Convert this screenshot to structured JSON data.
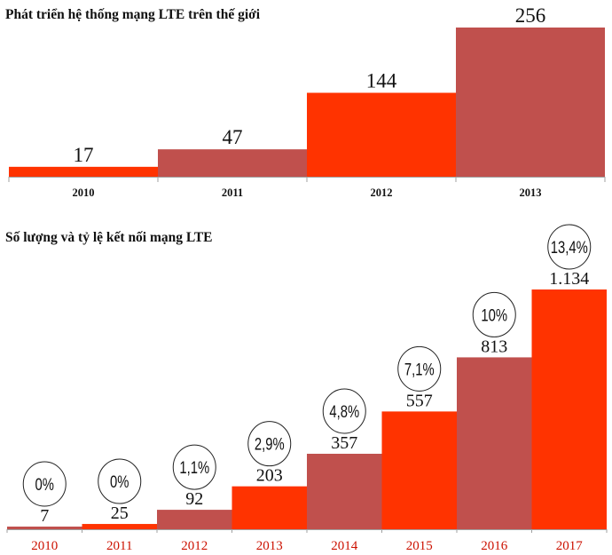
{
  "chart_data": [
    {
      "type": "bar",
      "title": "Phát triển hệ thống mạng LTE trên thế giới",
      "categories": [
        "2010",
        "2011",
        "2012",
        "2013"
      ],
      "values": [
        17,
        47,
        144,
        256
      ],
      "value_labels": [
        "17",
        "47",
        "144",
        "256"
      ],
      "colors": [
        "#ff3300",
        "#c0504d",
        "#ff3300",
        "#c0504d"
      ],
      "ylim": [
        0,
        256
      ],
      "grid": false,
      "legend": "none"
    },
    {
      "type": "bar",
      "title": "Số lượng và tỷ lệ kết nối mạng LTE",
      "categories": [
        "2010",
        "2011",
        "2012",
        "2013",
        "2014",
        "2015",
        "2016",
        "2017"
      ],
      "values": [
        7,
        25,
        92,
        203,
        357,
        557,
        813,
        1134
      ],
      "value_labels": [
        "7",
        "25",
        "92",
        "203",
        "357",
        "557",
        "813",
        "1.134"
      ],
      "percent_labels": [
        "0%",
        "0%",
        "1,1%",
        "2,9%",
        "4,8%",
        "7,1%",
        "10%",
        "13,4%"
      ],
      "colors": [
        "#c0504d",
        "#ff3300",
        "#c0504d",
        "#ff3300",
        "#c0504d",
        "#ff3300",
        "#c0504d",
        "#ff3300"
      ],
      "ylim": [
        0,
        1134
      ],
      "grid": false,
      "legend": "none"
    }
  ]
}
